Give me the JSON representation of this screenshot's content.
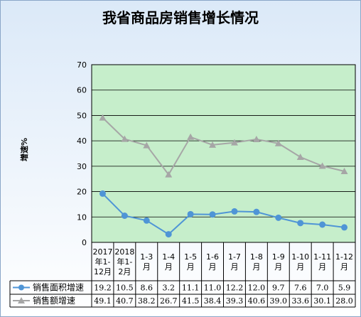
{
  "title": "我省商品房销售增长情况",
  "ylabel": "增速%",
  "chart_data": {
    "type": "line",
    "categories": [
      [
        "2017",
        "年1-",
        "12月"
      ],
      [
        "2018",
        "年1-",
        "2月"
      ],
      [
        "1-3",
        "月"
      ],
      [
        "1-4",
        "月"
      ],
      [
        "1-5",
        "月"
      ],
      [
        "1-6",
        "月"
      ],
      [
        "1-7",
        "月"
      ],
      [
        "1-8",
        "月"
      ],
      [
        "1-9",
        "月"
      ],
      [
        "1-10",
        "月"
      ],
      [
        "1-11",
        "月"
      ],
      [
        "1-12",
        "月"
      ]
    ],
    "ylim": [
      0,
      70
    ],
    "yticks": [
      0,
      10,
      20,
      30,
      40,
      50,
      60,
      70
    ],
    "grid": true,
    "series": [
      {
        "name": "销售面积增速",
        "color": "#4f95d6",
        "marker": "circle",
        "values": [
          19.2,
          10.5,
          8.6,
          3.2,
          11.1,
          11.0,
          12.2,
          12.0,
          9.7,
          7.6,
          7.0,
          5.9
        ],
        "labels": [
          "19.2",
          "10.5",
          "8.6",
          "3.2",
          "11.1",
          "11.0",
          "12.2",
          "12.0",
          "9.7",
          "7.6",
          "7.0",
          "5.9"
        ]
      },
      {
        "name": "销售额增速",
        "color": "#a6a6a6",
        "marker": "triangle",
        "values": [
          49.1,
          40.7,
          38.2,
          26.7,
          41.5,
          38.4,
          39.3,
          40.6,
          39.0,
          33.6,
          30.1,
          28.0
        ],
        "labels": [
          "49.1",
          "40.7",
          "38.2",
          "26.7",
          "41.5",
          "38.4",
          "39.3",
          "40.6",
          "39.0",
          "33.6",
          "30.1",
          "28.0"
        ]
      }
    ]
  },
  "colors": {
    "plot_bg": "#c6eecb",
    "grid": "#000000",
    "frame": "#8aa6c8"
  }
}
